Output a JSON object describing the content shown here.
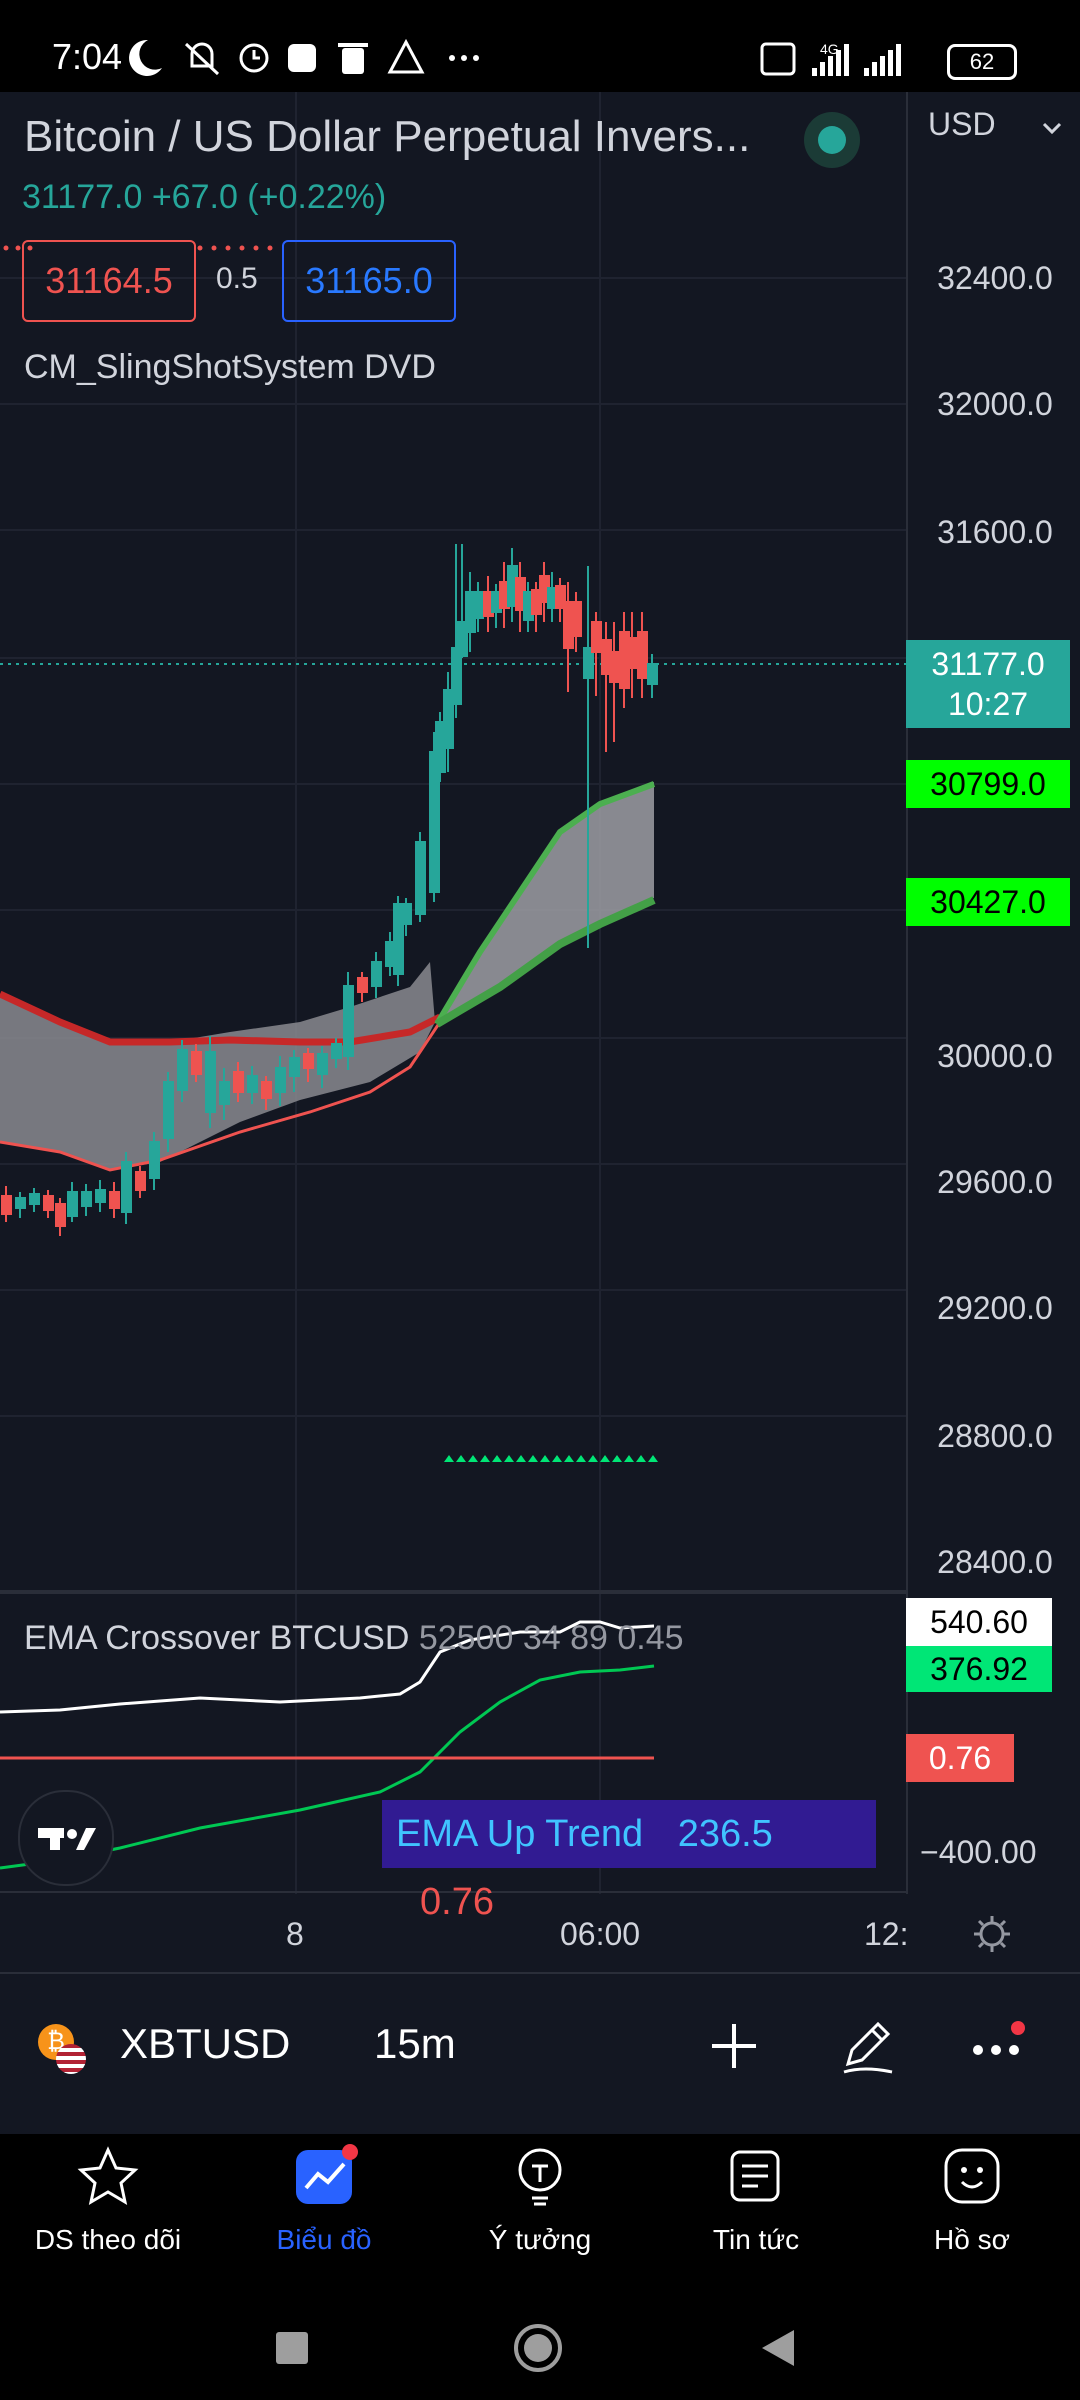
{
  "status_bar": {
    "time": "7:04",
    "battery": "62",
    "network": "4G"
  },
  "header": {
    "title": "Bitcoin / US Dollar Perpetual Invers...",
    "price_change": "31177.0  +67.0 (+0.22%)",
    "currency": "USD",
    "bid": "31164.5",
    "spread": "0.5",
    "ask": "31165.0",
    "indicator_name": "CM_SlingShotSystem DVD"
  },
  "price_axis": {
    "labels": [
      "32400.0",
      "32000.0",
      "31600.0",
      "30000.0",
      "29600.0",
      "29200.0",
      "28800.0",
      "28400.0"
    ],
    "last_price": "31177.0",
    "countdown": "10:27",
    "tag_upper": "30799.0",
    "tag_lower": "30427.0"
  },
  "ema_pane": {
    "label": "EMA Crossover BTCUSD",
    "params": "52500 34 89 0.45",
    "tag1": "540.60",
    "tag2": "376.92",
    "tag3": "0.76",
    "axis_label": "−400.00",
    "box_label": "EMA Up Trend",
    "box_value1": "236.5",
    "box_value2": "0.76"
  },
  "time_axis": {
    "labels": [
      "8",
      "06:00",
      "12:"
    ]
  },
  "symbol_bar": {
    "symbol": "XBTUSD",
    "interval": "15m"
  },
  "nav": {
    "items": [
      {
        "label": "DS theo dõi",
        "icon": "star-icon"
      },
      {
        "label": "Biểu đồ",
        "icon": "chart-icon"
      },
      {
        "label": "Ý tưởng",
        "icon": "lightbulb-icon"
      },
      {
        "label": "Tin tức",
        "icon": "news-icon"
      },
      {
        "label": "Hồ sơ",
        "icon": "smiley-icon"
      }
    ]
  },
  "colors": {
    "up": "#26a69a",
    "down": "#ef5350",
    "green_tag": "#00ff00",
    "accent_blue": "#2962ff"
  }
}
